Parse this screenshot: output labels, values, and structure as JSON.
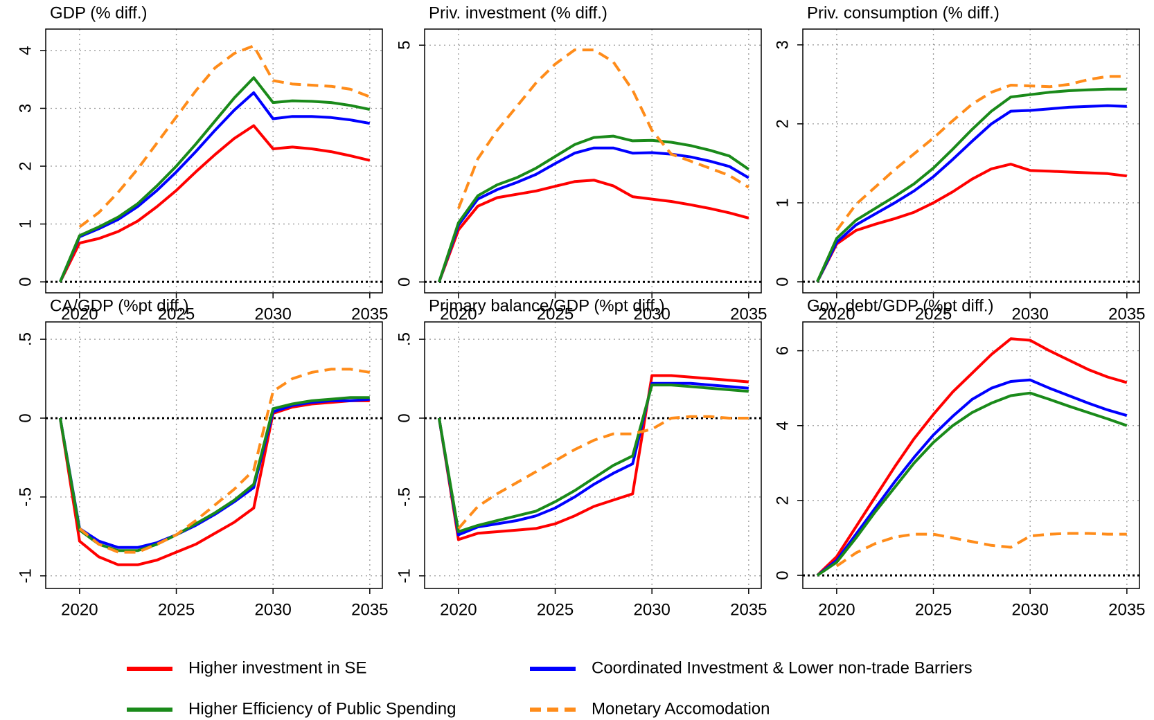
{
  "chart_data": [
    {
      "type": "line",
      "title": "GDP (% diff.)",
      "x": [
        2019,
        2020,
        2021,
        2022,
        2023,
        2024,
        2025,
        2026,
        2027,
        2028,
        2029,
        2030,
        2031,
        2032,
        2033,
        2034,
        2035
      ],
      "xlim": [
        2018.25,
        2035.65
      ],
      "xticks": [
        2020,
        2025,
        2030,
        2035
      ],
      "ylim": [
        -0.19,
        4.37
      ],
      "yticks": [
        0,
        1,
        2,
        3,
        4
      ],
      "grid": true,
      "zero_line": true,
      "series": [
        {
          "name": "Higher investment in SE",
          "color": "#ff0000",
          "style": "solid",
          "values": [
            0,
            0.67,
            0.75,
            0.87,
            1.05,
            1.3,
            1.58,
            1.9,
            2.2,
            2.48,
            2.7,
            2.3,
            2.33,
            2.3,
            2.25,
            2.18,
            2.1
          ]
        },
        {
          "name": "Coordinated Investment & Lower non-trade Barriers",
          "color": "#0000ff",
          "style": "solid",
          "values": [
            0,
            0.78,
            0.92,
            1.08,
            1.3,
            1.58,
            1.9,
            2.25,
            2.62,
            2.97,
            3.27,
            2.82,
            2.86,
            2.86,
            2.84,
            2.8,
            2.74
          ]
        },
        {
          "name": "Higher Efficiency of Public Spending",
          "color": "#1a8a1a",
          "style": "solid",
          "values": [
            0,
            0.8,
            0.95,
            1.12,
            1.35,
            1.66,
            2.0,
            2.38,
            2.78,
            3.18,
            3.53,
            3.1,
            3.13,
            3.12,
            3.1,
            3.05,
            2.98
          ]
        },
        {
          "name": "Monetary Accomodation",
          "color": "#ff8c1a",
          "style": "dashed",
          "values": [
            null,
            0.95,
            1.2,
            1.55,
            1.95,
            2.4,
            2.85,
            3.3,
            3.7,
            3.95,
            4.08,
            3.48,
            3.42,
            3.4,
            3.38,
            3.33,
            3.2
          ]
        }
      ]
    },
    {
      "type": "line",
      "title": "Priv. investment (% diff.)",
      "x": [
        2019,
        2020,
        2021,
        2022,
        2023,
        2024,
        2025,
        2026,
        2027,
        2028,
        2029,
        2030,
        2031,
        2032,
        2033,
        2034,
        2035
      ],
      "xlim": [
        2018.25,
        2035.65
      ],
      "xticks": [
        2020,
        2025,
        2030,
        2035
      ],
      "ylim": [
        -0.23,
        5.34
      ],
      "yticks": [
        0,
        5
      ],
      "grid": true,
      "zero_line": true,
      "series": [
        {
          "name": "Higher investment in SE",
          "color": "#ff0000",
          "style": "solid",
          "values": [
            0,
            1.1,
            1.6,
            1.78,
            1.85,
            1.92,
            2.02,
            2.12,
            2.15,
            2.03,
            1.8,
            1.75,
            1.7,
            1.63,
            1.55,
            1.46,
            1.35
          ]
        },
        {
          "name": "Coordinated Investment & Lower non-trade Barriers",
          "color": "#0000ff",
          "style": "solid",
          "values": [
            0,
            1.2,
            1.75,
            1.95,
            2.1,
            2.27,
            2.5,
            2.72,
            2.83,
            2.83,
            2.72,
            2.73,
            2.7,
            2.64,
            2.55,
            2.44,
            2.2
          ]
        },
        {
          "name": "Higher Efficiency of Public Spending",
          "color": "#1a8a1a",
          "style": "solid",
          "values": [
            0,
            1.25,
            1.82,
            2.05,
            2.2,
            2.4,
            2.65,
            2.9,
            3.05,
            3.08,
            2.98,
            2.99,
            2.95,
            2.88,
            2.78,
            2.66,
            2.38
          ]
        },
        {
          "name": "Monetary Accomodation",
          "color": "#ff8c1a",
          "style": "dashed",
          "values": [
            null,
            1.55,
            2.6,
            3.2,
            3.7,
            4.2,
            4.6,
            4.9,
            4.9,
            4.65,
            4.05,
            3.2,
            2.7,
            2.55,
            2.4,
            2.25,
            2.0
          ]
        }
      ]
    },
    {
      "type": "line",
      "title": "Priv. consumption (% diff.)",
      "x": [
        2019,
        2020,
        2021,
        2022,
        2023,
        2024,
        2025,
        2026,
        2027,
        2028,
        2029,
        2030,
        2031,
        2032,
        2033,
        2034,
        2035
      ],
      "xlim": [
        2018.25,
        2035.65
      ],
      "xticks": [
        2020,
        2025,
        2030,
        2035
      ],
      "ylim": [
        -0.14,
        3.2
      ],
      "yticks": [
        0,
        1,
        2,
        3
      ],
      "grid": true,
      "zero_line": true,
      "series": [
        {
          "name": "Higher investment in SE",
          "color": "#ff0000",
          "style": "solid",
          "values": [
            0,
            0.48,
            0.65,
            0.73,
            0.8,
            0.88,
            1.0,
            1.14,
            1.3,
            1.43,
            1.49,
            1.41,
            1.4,
            1.39,
            1.38,
            1.37,
            1.34
          ]
        },
        {
          "name": "Coordinated Investment & Lower non-trade Barriers",
          "color": "#0000ff",
          "style": "solid",
          "values": [
            0,
            0.5,
            0.72,
            0.86,
            1.0,
            1.15,
            1.33,
            1.55,
            1.78,
            2.0,
            2.16,
            2.17,
            2.19,
            2.21,
            2.22,
            2.23,
            2.22
          ]
        },
        {
          "name": "Higher Efficiency of Public Spending",
          "color": "#1a8a1a",
          "style": "solid",
          "values": [
            0,
            0.55,
            0.78,
            0.93,
            1.08,
            1.24,
            1.44,
            1.68,
            1.93,
            2.16,
            2.34,
            2.37,
            2.4,
            2.42,
            2.43,
            2.44,
            2.44
          ]
        },
        {
          "name": "Monetary Accomodation",
          "color": "#ff8c1a",
          "style": "dashed",
          "values": [
            null,
            0.65,
            0.98,
            1.2,
            1.42,
            1.62,
            1.82,
            2.04,
            2.25,
            2.4,
            2.49,
            2.48,
            2.47,
            2.5,
            2.56,
            2.6,
            2.6
          ]
        }
      ]
    },
    {
      "type": "line",
      "title": "CA/GDP (%pt diff.)",
      "x": [
        2019,
        2020,
        2021,
        2022,
        2023,
        2024,
        2025,
        2026,
        2027,
        2028,
        2029,
        2030,
        2031,
        2032,
        2033,
        2034,
        2035
      ],
      "xlim": [
        2018.25,
        2035.65
      ],
      "xticks": [
        2020,
        2025,
        2030,
        2035
      ],
      "ylim": [
        -1.08,
        0.61
      ],
      "yticks": [
        -1,
        {
          "value": -0.5,
          "label": "-.5"
        },
        0,
        {
          "value": 0.5,
          "label": ".5"
        }
      ],
      "grid": true,
      "zero_line": true,
      "series": [
        {
          "name": "Higher investment in SE",
          "color": "#ff0000",
          "style": "solid",
          "values": [
            0,
            -0.78,
            -0.88,
            -0.93,
            -0.93,
            -0.9,
            -0.85,
            -0.8,
            -0.73,
            -0.66,
            -0.57,
            0.03,
            0.07,
            0.09,
            0.1,
            0.11,
            0.11
          ]
        },
        {
          "name": "Coordinated Investment & Lower non-trade Barriers",
          "color": "#0000ff",
          "style": "solid",
          "values": [
            0,
            -0.7,
            -0.78,
            -0.82,
            -0.82,
            -0.79,
            -0.74,
            -0.68,
            -0.61,
            -0.53,
            -0.44,
            0.04,
            0.08,
            0.1,
            0.11,
            0.11,
            0.12
          ]
        },
        {
          "name": "Higher Efficiency of Public Spending",
          "color": "#1a8a1a",
          "style": "solid",
          "values": [
            0,
            -0.71,
            -0.8,
            -0.84,
            -0.84,
            -0.8,
            -0.74,
            -0.67,
            -0.6,
            -0.52,
            -0.42,
            0.06,
            0.09,
            0.11,
            0.12,
            0.13,
            0.13
          ]
        },
        {
          "name": "Monetary Accomodation",
          "color": "#ff8c1a",
          "style": "dashed",
          "values": [
            null,
            -0.7,
            -0.8,
            -0.85,
            -0.85,
            -0.8,
            -0.74,
            -0.65,
            -0.55,
            -0.45,
            -0.33,
            0.17,
            0.25,
            0.29,
            0.31,
            0.31,
            0.29
          ]
        }
      ]
    },
    {
      "type": "line",
      "title": "Primary balance/GDP (%pt diff.)",
      "x": [
        2019,
        2020,
        2021,
        2022,
        2023,
        2024,
        2025,
        2026,
        2027,
        2028,
        2029,
        2030,
        2031,
        2032,
        2033,
        2034,
        2035
      ],
      "xlim": [
        2018.25,
        2035.65
      ],
      "xticks": [
        2020,
        2025,
        2030,
        2035
      ],
      "ylim": [
        -1.08,
        0.61
      ],
      "yticks": [
        -1,
        {
          "value": -0.5,
          "label": "-.5"
        },
        0,
        {
          "value": 0.5,
          "label": ".5"
        }
      ],
      "grid": true,
      "zero_line": true,
      "series": [
        {
          "name": "Higher investment in SE",
          "color": "#ff0000",
          "style": "solid",
          "values": [
            0,
            -0.77,
            -0.73,
            -0.72,
            -0.71,
            -0.7,
            -0.67,
            -0.62,
            -0.56,
            -0.52,
            -0.48,
            0.27,
            0.27,
            0.26,
            0.25,
            0.24,
            0.23
          ]
        },
        {
          "name": "Coordinated Investment & Lower non-trade Barriers",
          "color": "#0000ff",
          "style": "solid",
          "values": [
            0,
            -0.74,
            -0.69,
            -0.67,
            -0.65,
            -0.62,
            -0.57,
            -0.5,
            -0.42,
            -0.35,
            -0.29,
            0.22,
            0.22,
            0.22,
            0.21,
            0.2,
            0.19
          ]
        },
        {
          "name": "Higher Efficiency of Public Spending",
          "color": "#1a8a1a",
          "style": "solid",
          "values": [
            0,
            -0.72,
            -0.68,
            -0.65,
            -0.62,
            -0.59,
            -0.53,
            -0.46,
            -0.38,
            -0.3,
            -0.24,
            0.21,
            0.21,
            0.2,
            0.19,
            0.18,
            0.17
          ]
        },
        {
          "name": "Monetary Accomodation",
          "color": "#ff8c1a",
          "style": "dashed",
          "values": [
            null,
            -0.7,
            -0.56,
            -0.48,
            -0.41,
            -0.34,
            -0.27,
            -0.2,
            -0.14,
            -0.1,
            -0.1,
            -0.07,
            0,
            0.01,
            0.01,
            0,
            0
          ]
        }
      ]
    },
    {
      "type": "line",
      "title": "Gov. debt/GDP (%pt diff.)",
      "x": [
        2019,
        2020,
        2021,
        2022,
        2023,
        2024,
        2025,
        2026,
        2027,
        2028,
        2029,
        2030,
        2031,
        2032,
        2033,
        2034,
        2035
      ],
      "xlim": [
        2018.25,
        2035.65
      ],
      "xticks": [
        2020,
        2025,
        2030,
        2035
      ],
      "ylim": [
        -0.35,
        6.77
      ],
      "yticks": [
        0,
        2,
        4,
        6
      ],
      "grid": true,
      "zero_line": true,
      "series": [
        {
          "name": "Higher investment in SE",
          "color": "#ff0000",
          "style": "solid",
          "values": [
            0,
            0.5,
            1.3,
            2.1,
            2.9,
            3.65,
            4.3,
            4.9,
            5.4,
            5.9,
            6.32,
            6.28,
            6.0,
            5.75,
            5.5,
            5.3,
            5.15
          ]
        },
        {
          "name": "Coordinated Investment & Lower non-trade Barriers",
          "color": "#0000ff",
          "style": "solid",
          "values": [
            0,
            0.4,
            1.1,
            1.8,
            2.5,
            3.15,
            3.75,
            4.25,
            4.7,
            5.0,
            5.18,
            5.22,
            5.0,
            4.8,
            4.6,
            4.42,
            4.27
          ]
        },
        {
          "name": "Higher Efficiency of Public Spending",
          "color": "#1a8a1a",
          "style": "solid",
          "values": [
            0,
            0.35,
            1.0,
            1.7,
            2.35,
            3.0,
            3.55,
            4.0,
            4.35,
            4.6,
            4.8,
            4.87,
            4.7,
            4.52,
            4.35,
            4.18,
            4.0
          ]
        },
        {
          "name": "Monetary Accomodation",
          "color": "#ff8c1a",
          "style": "dashed",
          "values": [
            null,
            0.25,
            0.6,
            0.85,
            1.02,
            1.1,
            1.1,
            1.0,
            0.9,
            0.8,
            0.75,
            1.05,
            1.1,
            1.12,
            1.12,
            1.1,
            1.1
          ]
        }
      ]
    }
  ]
}
